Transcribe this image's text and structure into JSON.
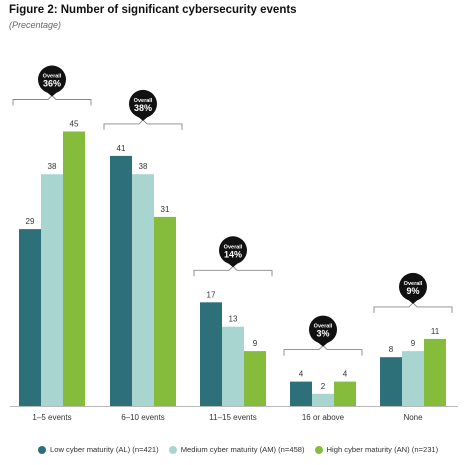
{
  "header": {
    "title": "Figure 2: Number of significant cybersecurity events",
    "subtitle": "(Precentage)"
  },
  "chart_data": {
    "type": "bar",
    "title": "Figure 2: Number of significant cybersecurity events",
    "subtitle": "(Precentage)",
    "categories": [
      "1–5 events",
      "6–10 events",
      "11–15 events",
      "16 or above",
      "None"
    ],
    "series": [
      {
        "name": "Low cyber maturity (AL) (n=421)",
        "color": "#2e7079",
        "values": [
          29,
          41,
          17,
          4,
          8
        ]
      },
      {
        "name": "Medium cyber maturity (AM) (n=458)",
        "color": "#a9d5d1",
        "values": [
          38,
          38,
          13,
          2,
          9
        ]
      },
      {
        "name": "High cyber maturity (AN) (n=231)",
        "color": "#86bc3c",
        "values": [
          45,
          31,
          9,
          4,
          11
        ]
      }
    ],
    "overall": {
      "label": "Overall",
      "values": [
        "36%",
        "38%",
        "14%",
        "3%",
        "9%"
      ]
    },
    "ylim": [
      0,
      45
    ],
    "grid": false,
    "legend": "bottom"
  }
}
